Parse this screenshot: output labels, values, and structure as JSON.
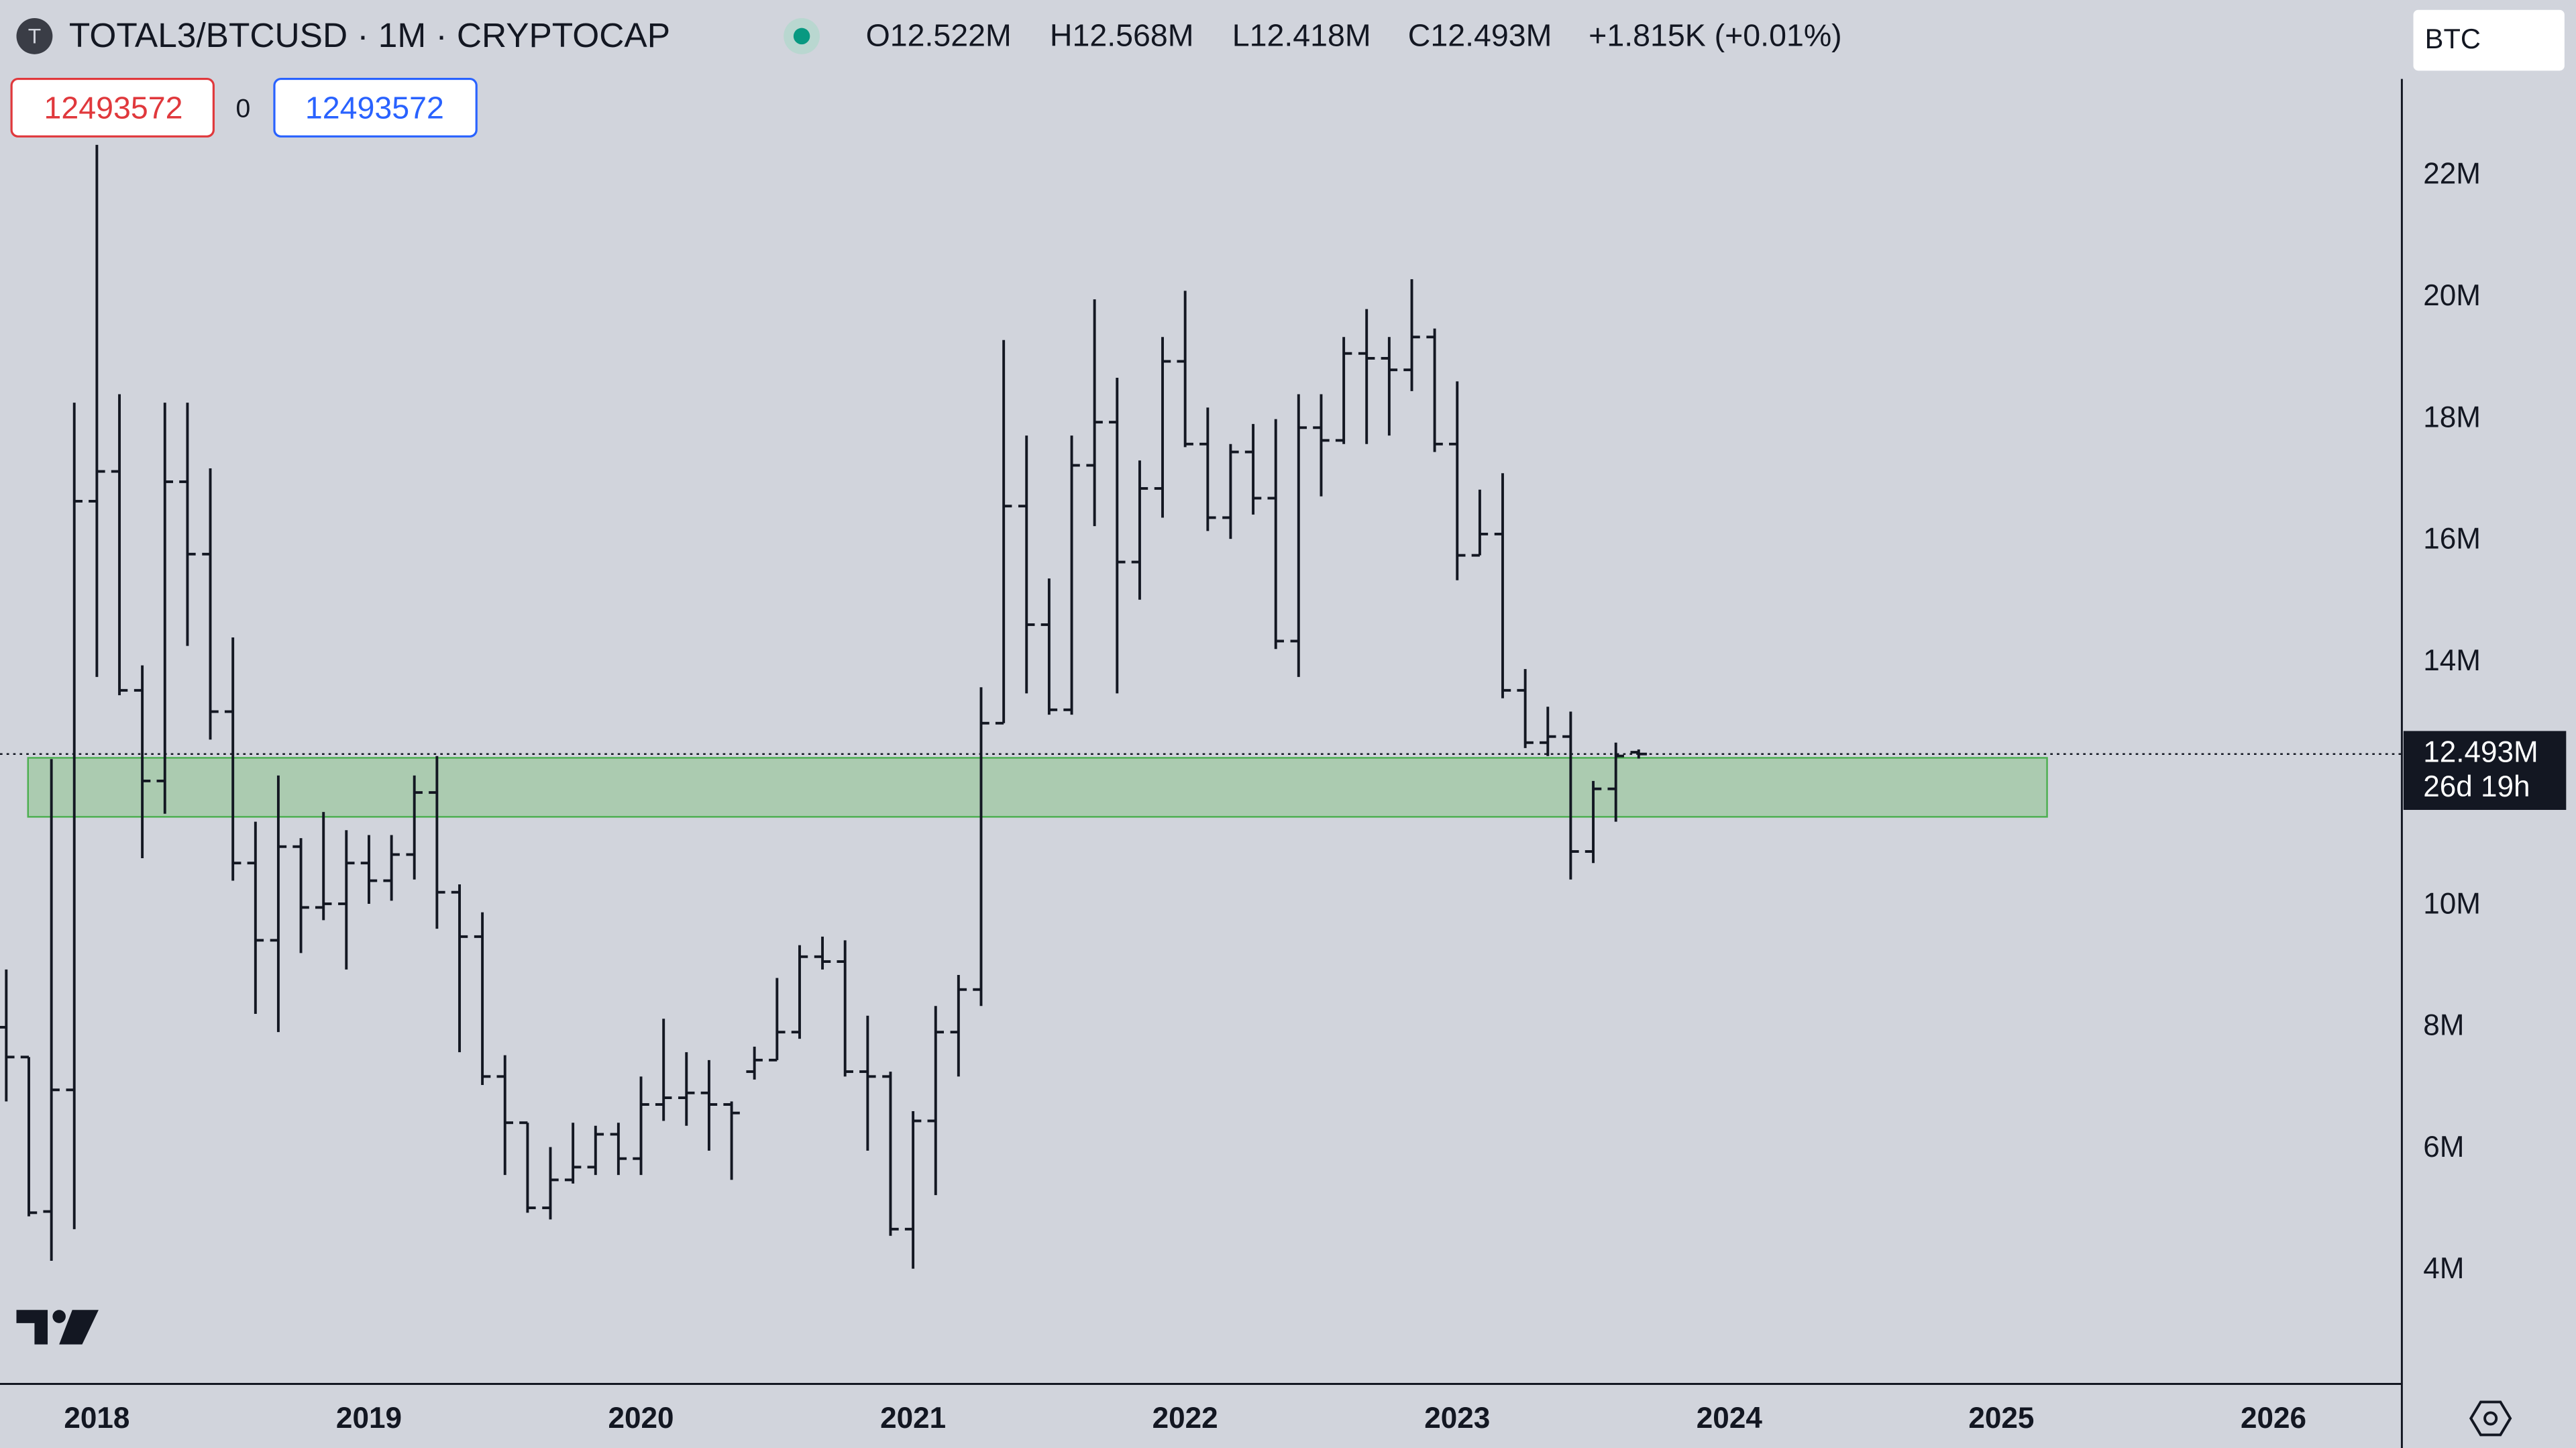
{
  "chart_data": {
    "type": "ohlc",
    "logo_letter": "T",
    "title": "TOTAL3/BTCUSD · 1M · CRYPTOCAP",
    "header_values": [
      "O12.522M",
      "H12.568M",
      "L12.418M",
      "C12.493M",
      "+1.815K (+0.01%)"
    ],
    "sell_box": "12493572",
    "spread": "0",
    "buy_box": "12493572",
    "currency": "BTC",
    "price_label": "12.493M",
    "countdown": "26d 19h",
    "color": "#131722",
    "zone": {
      "color": "#a5c9a8",
      "x": [
        2017.747,
        2025.168
      ],
      "y": [
        11.46,
        12.43
      ]
    },
    "x": [
      2017.667,
      2017.75,
      2017.833,
      2017.917,
      2018.0,
      2018.083,
      2018.167,
      2018.25,
      2018.333,
      2018.417,
      2018.5,
      2018.583,
      2018.667,
      2018.75,
      2018.833,
      2018.917,
      2019.0,
      2019.083,
      2019.167,
      2019.25,
      2019.333,
      2019.417,
      2019.5,
      2019.583,
      2019.667,
      2019.75,
      2019.833,
      2019.917,
      2020.0,
      2020.083,
      2020.167,
      2020.25,
      2020.333,
      2020.417,
      2020.5,
      2020.583,
      2020.667,
      2020.75,
      2020.833,
      2020.917,
      2021.0,
      2021.083,
      2021.167,
      2021.25,
      2021.333,
      2021.417,
      2021.5,
      2021.583,
      2021.667,
      2021.75,
      2021.833,
      2021.917,
      2022.0,
      2022.083,
      2022.167,
      2022.25,
      2022.333,
      2022.417,
      2022.5,
      2022.583,
      2022.667,
      2022.75,
      2022.833,
      2022.917,
      2023.0,
      2023.083,
      2023.167,
      2023.25,
      2023.333,
      2023.417,
      2023.5,
      2023.583,
      2023.667
    ],
    "open": [
      8.0,
      7.51,
      4.97,
      6.97,
      16.65,
      17.14,
      13.54,
      12.05,
      16.97,
      15.78,
      13.19,
      10.7,
      9.43,
      10.97,
      9.97,
      10.03,
      10.7,
      10.41,
      10.84,
      11.86,
      10.22,
      9.49,
      7.19,
      6.43,
      5.03,
      5.49,
      5.7,
      6.24,
      5.84,
      6.73,
      6.84,
      6.92,
      6.73,
      7.27,
      7.46,
      7.92,
      9.16,
      9.08,
      7.27,
      7.19,
      4.68,
      6.46,
      7.92,
      8.62,
      13.0,
      16.57,
      14.62,
      13.22,
      17.24,
      17.95,
      15.65,
      16.86,
      18.95,
      17.59,
      16.38,
      17.46,
      16.7,
      14.35,
      17.86,
      17.65,
      19.08,
      19.0,
      18.81,
      19.35,
      17.59,
      15.76,
      16.11,
      13.54,
      12.68,
      12.78,
      10.89,
      11.92,
      12.522
    ],
    "high": [
      8.95,
      7.51,
      12.41,
      18.27,
      22.51,
      18.41,
      13.95,
      18.27,
      18.27,
      17.19,
      14.41,
      11.38,
      12.14,
      11.11,
      11.54,
      11.24,
      11.16,
      11.16,
      12.14,
      12.46,
      10.35,
      9.89,
      7.54,
      6.43,
      6.03,
      6.43,
      6.38,
      6.43,
      7.19,
      8.14,
      7.59,
      7.46,
      6.78,
      7.68,
      8.81,
      9.35,
      9.49,
      9.43,
      8.19,
      7.27,
      6.62,
      8.35,
      8.86,
      13.59,
      19.3,
      17.73,
      15.38,
      17.73,
      19.97,
      18.68,
      17.32,
      19.35,
      20.11,
      18.19,
      17.59,
      17.92,
      18.0,
      18.41,
      18.41,
      19.35,
      19.81,
      19.35,
      20.3,
      19.49,
      18.62,
      16.84,
      17.11,
      13.89,
      13.27,
      13.19,
      12.05,
      12.68,
      12.568
    ],
    "low": [
      6.78,
      4.89,
      4.16,
      4.68,
      13.76,
      13.46,
      10.78,
      11.51,
      14.27,
      12.73,
      10.41,
      8.22,
      7.92,
      9.22,
      9.76,
      8.95,
      10.03,
      10.08,
      10.43,
      9.62,
      7.59,
      7.05,
      5.57,
      4.95,
      4.84,
      5.43,
      5.57,
      5.57,
      5.57,
      6.46,
      6.38,
      5.97,
      5.49,
      7.14,
      7.46,
      7.81,
      8.95,
      7.19,
      5.97,
      4.57,
      4.03,
      5.24,
      7.19,
      8.35,
      13.0,
      13.49,
      13.14,
      13.14,
      16.24,
      13.49,
      15.03,
      16.38,
      17.54,
      16.16,
      16.03,
      16.43,
      14.22,
      13.76,
      16.73,
      17.59,
      17.59,
      17.73,
      18.46,
      17.46,
      15.35,
      15.76,
      13.41,
      12.59,
      12.46,
      10.43,
      10.7,
      11.38,
      12.418
    ],
    "close": [
      7.51,
      4.95,
      6.97,
      16.65,
      17.14,
      13.54,
      12.05,
      16.97,
      15.78,
      13.19,
      10.7,
      9.43,
      10.97,
      9.97,
      10.03,
      10.7,
      10.41,
      10.84,
      11.86,
      10.22,
      9.49,
      7.19,
      6.43,
      5.03,
      5.49,
      5.7,
      6.24,
      5.84,
      6.73,
      6.84,
      6.92,
      6.73,
      6.59,
      7.46,
      7.92,
      9.16,
      9.08,
      7.27,
      7.19,
      4.68,
      6.46,
      7.92,
      8.62,
      13.0,
      16.57,
      14.62,
      13.22,
      17.24,
      17.95,
      15.65,
      16.86,
      18.95,
      17.59,
      16.38,
      17.46,
      16.7,
      14.35,
      17.86,
      17.65,
      19.08,
      19.0,
      18.81,
      19.35,
      17.59,
      15.76,
      16.11,
      13.54,
      12.68,
      12.78,
      10.89,
      11.92,
      12.46,
      12.493
    ],
    "xlim": [
      2017.644,
      2026.472
    ],
    "xticks": [
      2018,
      2019,
      2020,
      2021,
      2022,
      2023,
      2024,
      2025,
      2026
    ],
    "ylim": [
      2.135,
      24.892
    ],
    "yticks": [
      {
        "value": 4,
        "label": "4M"
      },
      {
        "value": 6,
        "label": "6M"
      },
      {
        "value": 8,
        "label": "8M"
      },
      {
        "value": 10,
        "label": "10M"
      },
      {
        "value": 14,
        "label": "14M"
      },
      {
        "value": 16,
        "label": "16M"
      },
      {
        "value": 18,
        "label": "18M"
      },
      {
        "value": 20,
        "label": "20M"
      },
      {
        "value": 22,
        "label": "22M"
      }
    ],
    "grid": false
  }
}
